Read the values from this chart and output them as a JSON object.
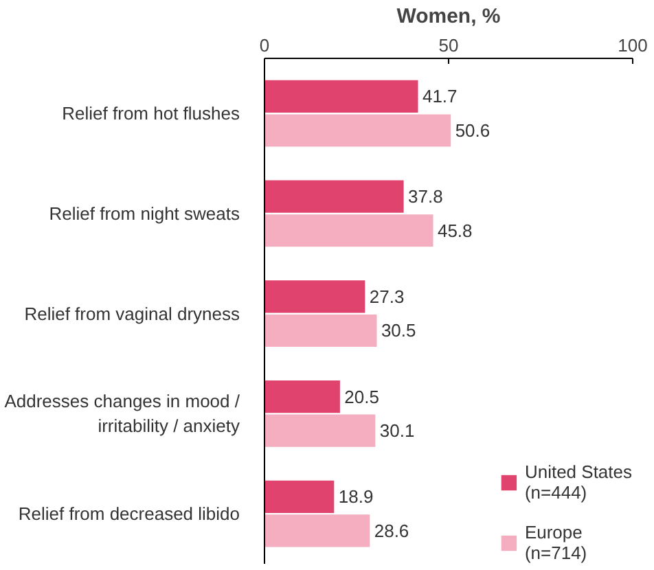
{
  "chart_data": {
    "type": "bar",
    "orientation": "horizontal",
    "xlabel": "Women, %",
    "categories": [
      "Relief from hot flushes",
      "Relief from night sweats",
      "Relief from vaginal dryness",
      "Addresses changes in mood /\nirritability / anxiety",
      "Relief from decreased libido"
    ],
    "series": [
      {
        "name": "United States\n(n=444)",
        "color": "#e0436e",
        "values": [
          41.7,
          37.8,
          27.3,
          20.5,
          18.9
        ]
      },
      {
        "name": "Europe\n(n=714)",
        "color": "#f4aec0",
        "values": [
          50.6,
          45.8,
          30.5,
          30.1,
          28.6
        ]
      }
    ],
    "xlim": [
      0,
      100
    ],
    "xticks": [
      0,
      50,
      100
    ],
    "data_labels": true,
    "grid": false,
    "legend": "bottom right"
  }
}
